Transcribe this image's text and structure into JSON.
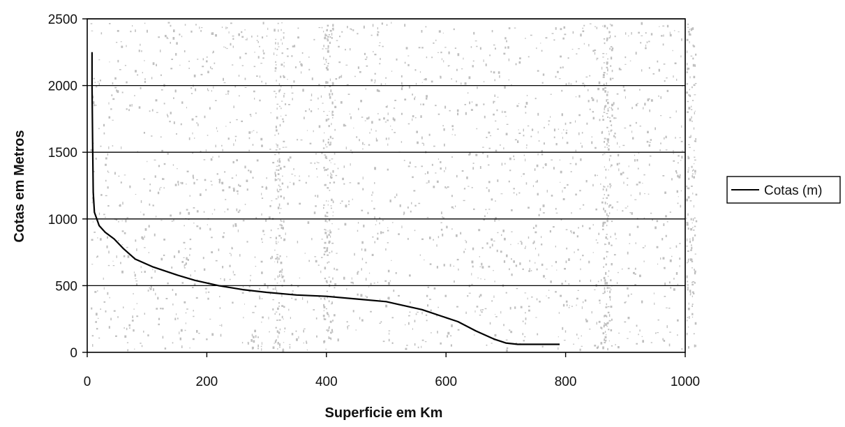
{
  "chart_data": {
    "type": "line",
    "title": "",
    "xlabel": "Superficie em Km",
    "ylabel": "Cotas em Metros",
    "xlim": [
      0,
      1000
    ],
    "ylim": [
      0,
      2500
    ],
    "xticks": [
      "0",
      "200",
      "400",
      "600",
      "800",
      "1000"
    ],
    "yticks": [
      "0",
      "500",
      "1000",
      "1500",
      "2000",
      "2500"
    ],
    "grid": "horizontal",
    "legend_position": "right",
    "colors": {
      "line": "#000000",
      "grid": "#000000",
      "plot_background": "#ffffff",
      "speckle": "#8a8a8a"
    },
    "series": [
      {
        "name": "Cotas (m)",
        "x": [
          8,
          8,
          9,
          10,
          12,
          20,
          30,
          45,
          60,
          80,
          110,
          150,
          180,
          220,
          260,
          300,
          350,
          400,
          450,
          500,
          520,
          560,
          600,
          620,
          650,
          680,
          700,
          720,
          760,
          790
        ],
        "y": [
          2250,
          2000,
          1600,
          1200,
          1050,
          950,
          900,
          850,
          780,
          700,
          640,
          580,
          540,
          500,
          470,
          450,
          430,
          420,
          400,
          380,
          360,
          320,
          260,
          230,
          160,
          100,
          70,
          60,
          60,
          60
        ]
      }
    ]
  }
}
